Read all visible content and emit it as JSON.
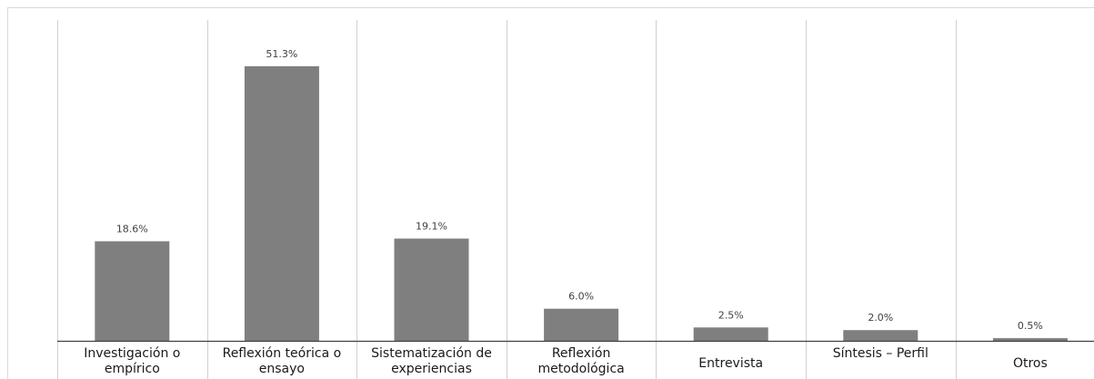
{
  "chart_data": {
    "type": "bar",
    "categories": [
      "Investigación o empírico",
      "Reflexión teórica o ensayo",
      "Sistematización de experiencias",
      "Reflexión metodológica",
      "Entrevista",
      "Síntesis – Perfil",
      "Otros"
    ],
    "values": [
      18.6,
      51.3,
      19.1,
      6.0,
      2.5,
      2.0,
      0.5
    ],
    "value_labels": [
      "18.6%",
      "51.3%",
      "19.1%",
      "6.0%",
      "2.5%",
      "2.0%",
      "0.5%"
    ],
    "color": "#7f7f7f"
  }
}
